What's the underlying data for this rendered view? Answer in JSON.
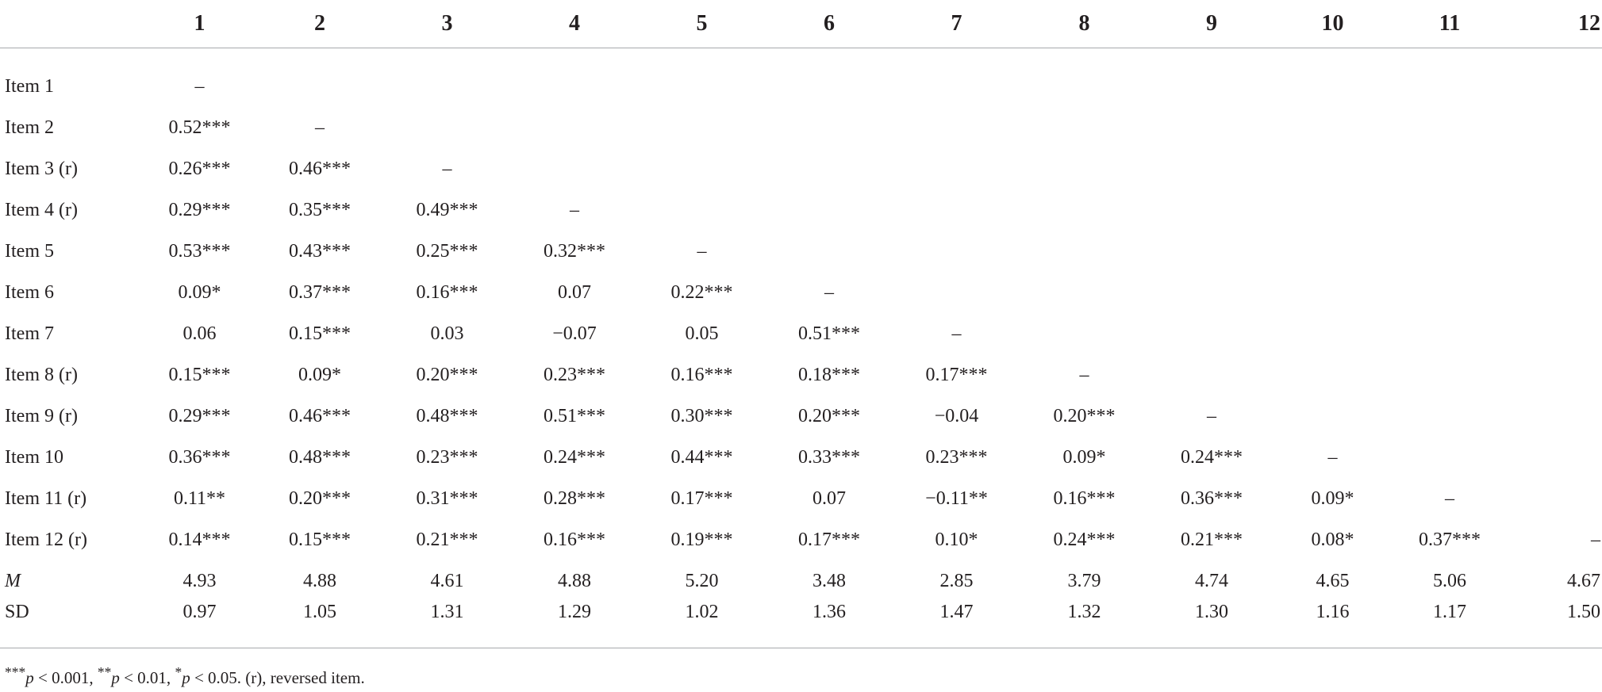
{
  "table": {
    "columns": [
      "1",
      "2",
      "3",
      "4",
      "5",
      "6",
      "7",
      "8",
      "9",
      "10",
      "11",
      "12"
    ],
    "rows": [
      {
        "label": "Item 1",
        "italic": false,
        "cells": [
          "–",
          "",
          "",
          "",
          "",
          "",
          "",
          "",
          "",
          "",
          "",
          ""
        ]
      },
      {
        "label": "Item 2",
        "italic": false,
        "cells": [
          "0.52***",
          "–",
          "",
          "",
          "",
          "",
          "",
          "",
          "",
          "",
          "",
          ""
        ]
      },
      {
        "label": "Item 3 (r)",
        "italic": false,
        "cells": [
          "0.26***",
          "0.46***",
          "–",
          "",
          "",
          "",
          "",
          "",
          "",
          "",
          "",
          ""
        ]
      },
      {
        "label": "Item 4 (r)",
        "italic": false,
        "cells": [
          "0.29***",
          "0.35***",
          "0.49***",
          "–",
          "",
          "",
          "",
          "",
          "",
          "",
          "",
          ""
        ]
      },
      {
        "label": "Item 5",
        "italic": false,
        "cells": [
          "0.53***",
          "0.43***",
          "0.25***",
          "0.32***",
          "–",
          "",
          "",
          "",
          "",
          "",
          "",
          ""
        ]
      },
      {
        "label": "Item 6",
        "italic": false,
        "cells": [
          "0.09*",
          "0.37***",
          "0.16***",
          "0.07",
          "0.22***",
          "–",
          "",
          "",
          "",
          "",
          "",
          ""
        ]
      },
      {
        "label": "Item 7",
        "italic": false,
        "cells": [
          "0.06",
          "0.15***",
          "0.03",
          "−0.07",
          "0.05",
          "0.51***",
          "–",
          "",
          "",
          "",
          "",
          ""
        ]
      },
      {
        "label": "Item 8 (r)",
        "italic": false,
        "cells": [
          "0.15***",
          "0.09*",
          "0.20***",
          "0.23***",
          "0.16***",
          "0.18***",
          "0.17***",
          "–",
          "",
          "",
          "",
          ""
        ]
      },
      {
        "label": "Item 9 (r)",
        "italic": false,
        "cells": [
          "0.29***",
          "0.46***",
          "0.48***",
          "0.51***",
          "0.30***",
          "0.20***",
          "−0.04",
          "0.20***",
          "–",
          "",
          "",
          ""
        ]
      },
      {
        "label": "Item 10",
        "italic": false,
        "cells": [
          "0.36***",
          "0.48***",
          "0.23***",
          "0.24***",
          "0.44***",
          "0.33***",
          "0.23***",
          "0.09*",
          "0.24***",
          "–",
          "",
          ""
        ]
      },
      {
        "label": "Item 11 (r)",
        "italic": false,
        "cells": [
          "0.11**",
          "0.20***",
          "0.31***",
          "0.28***",
          "0.17***",
          "0.07",
          "−0.11**",
          "0.16***",
          "0.36***",
          "0.09*",
          "–",
          ""
        ]
      },
      {
        "label": "Item 12 (r)",
        "italic": false,
        "cells": [
          "0.14***",
          "0.15***",
          "0.21***",
          "0.16***",
          "0.19***",
          "0.17***",
          "0.10*",
          "0.24***",
          "0.21***",
          "0.08*",
          "0.37***",
          "–"
        ]
      },
      {
        "label": "M",
        "italic": true,
        "cells": [
          "4.93",
          "4.88",
          "4.61",
          "4.88",
          "5.20",
          "3.48",
          "2.85",
          "3.79",
          "4.74",
          "4.65",
          "5.06",
          "4.67"
        ]
      },
      {
        "label": "SD",
        "italic": false,
        "cells": [
          "0.97",
          "1.05",
          "1.31",
          "1.29",
          "1.02",
          "1.36",
          "1.47",
          "1.32",
          "1.30",
          "1.16",
          "1.17",
          "1.50"
        ]
      }
    ]
  },
  "footnote": {
    "sig1_stars": "***",
    "sig1_p": "p",
    "sig1_rest": " < 0.001, ",
    "sig2_stars": "**",
    "sig2_p": "p",
    "sig2_rest": " < 0.01, ",
    "sig3_stars": "*",
    "sig3_p": "p",
    "sig3_rest": " < 0.05. (r), reversed item."
  }
}
